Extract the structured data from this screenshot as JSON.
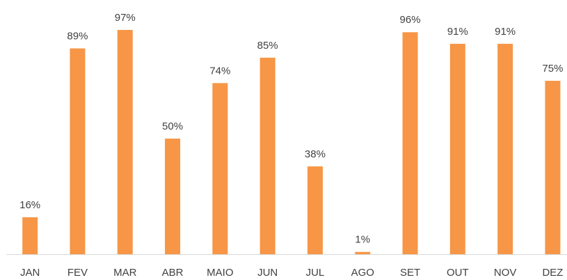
{
  "chart_data": {
    "type": "bar",
    "categories": [
      "JAN",
      "FEV",
      "MAR",
      "ABR",
      "MAIO",
      "JUN",
      "JUL",
      "AGO",
      "SET",
      "OUT",
      "NOV",
      "DEZ"
    ],
    "values": [
      16,
      89,
      97,
      50,
      74,
      85,
      38,
      1,
      96,
      91,
      91,
      75
    ],
    "value_labels": [
      "16%",
      "89%",
      "97%",
      "50%",
      "74%",
      "85%",
      "38%",
      "1%",
      "96%",
      "91%",
      "91%",
      "75%"
    ],
    "color": "#f79646",
    "ylim": [
      0,
      100
    ]
  }
}
